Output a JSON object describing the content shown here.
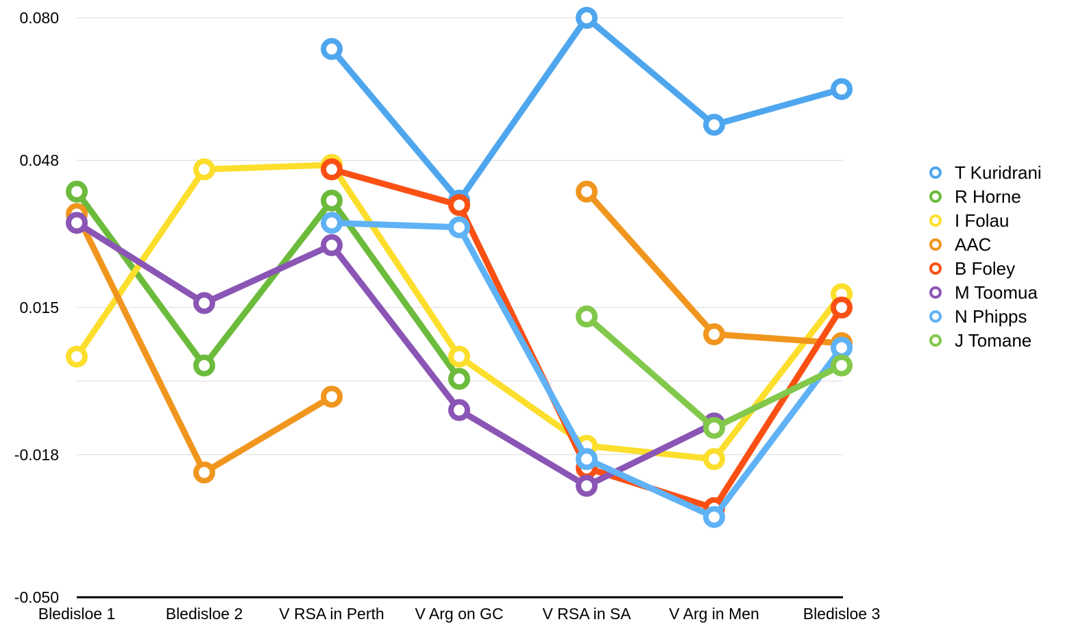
{
  "chart_data": {
    "type": "line",
    "categories": [
      "Bledisloe 1",
      "Bledisloe 2",
      "V RSA in Perth",
      "V Arg on GC",
      "V RSA in SA",
      "V Arg in Men",
      "Bledisloe 3"
    ],
    "yticks": [
      {
        "value": 0.08,
        "label": "0.080"
      },
      {
        "value": 0.048,
        "label": "0.048"
      },
      {
        "value": 0.015,
        "label": "0.015"
      },
      {
        "value": -0.018,
        "label": "-0.018"
      },
      {
        "value": -0.05,
        "label": "-0.050"
      }
    ],
    "minor_gridlines": [
      -0.0015
    ],
    "ylim": [
      -0.05,
      0.08
    ],
    "grid": true,
    "legend_position": "right",
    "series": [
      {
        "name": "T Kuridrani",
        "color": "#4ea6ee",
        "values": [
          null,
          null,
          0.073,
          0.039,
          0.08,
          0.056,
          0.064
        ]
      },
      {
        "name": "R Horne",
        "color": "#6cbb3c",
        "values": [
          0.041,
          0.002,
          0.039,
          -0.001,
          null,
          null,
          null
        ]
      },
      {
        "name": "I Folau",
        "color": "#fcde2c",
        "values": [
          0.004,
          0.046,
          0.047,
          0.004,
          -0.016,
          -0.019,
          0.018
        ]
      },
      {
        "name": "AAC",
        "color": "#f0961e",
        "values": [
          0.036,
          -0.022,
          -0.005,
          null,
          0.041,
          0.009,
          0.007
        ]
      },
      {
        "name": "B Foley",
        "color": "#fa5014",
        "values": [
          null,
          null,
          0.046,
          0.038,
          -0.021,
          -0.03,
          0.015
        ]
      },
      {
        "name": "M Toomua",
        "color": "#8a55b4",
        "values": [
          0.034,
          0.016,
          0.029,
          -0.008,
          -0.025,
          -0.011,
          null
        ]
      },
      {
        "name": "N Phipps",
        "color": "#5fb2f5",
        "values": [
          null,
          null,
          0.034,
          0.033,
          -0.019,
          -0.032,
          0.006
        ]
      },
      {
        "name": "J Tomane",
        "color": "#82c84b",
        "values": [
          null,
          null,
          null,
          null,
          0.013,
          -0.012,
          0.002
        ]
      }
    ]
  }
}
